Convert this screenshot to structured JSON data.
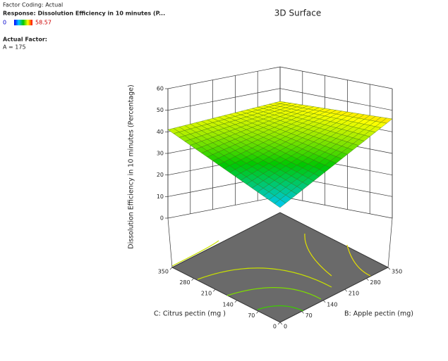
{
  "chart_data": {
    "type": "surface3d",
    "title": "3D Surface",
    "factor_coding": "Factor Coding: Actual",
    "response": "Response: Dissolution Efficiency in 10 minutes  (P...",
    "color_scale": [
      0,
      58.57
    ],
    "actual_factor_title": "Actual Factor:",
    "actual_factor": "A = 175",
    "zlabel": "Dissolution Efficiency in 10 minutes  (Percentage)",
    "xlabel": "B: Apple pectin (mg)",
    "ylabel": "C: Citrus pectin (mg )",
    "xlim": [
      0,
      350
    ],
    "xticks": [
      0,
      70,
      140,
      210,
      280,
      350
    ],
    "ylim": [
      0,
      350
    ],
    "yticks": [
      0,
      70,
      140,
      210,
      280,
      350
    ],
    "zlim": [
      0,
      60
    ],
    "zticks": [
      0,
      10,
      20,
      30,
      40,
      50,
      60
    ]
  }
}
